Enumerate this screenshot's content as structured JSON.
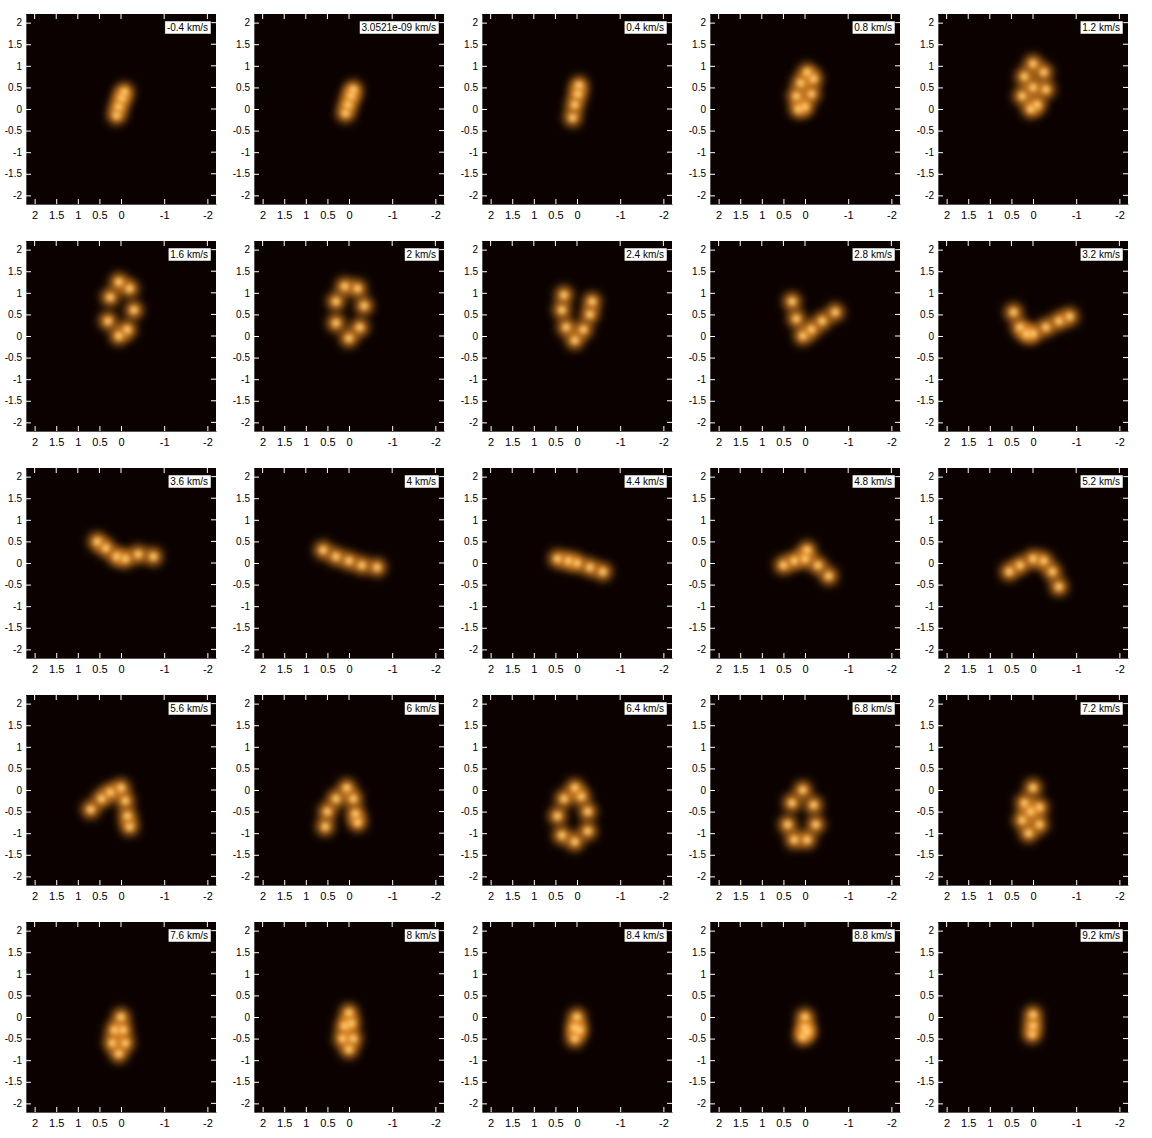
{
  "chart_data": [
    {
      "type": "scatter",
      "title": "-0.4 km/s",
      "color": "#ff9c2a",
      "x": [
        0.1,
        0.05,
        -0.02,
        -0.08
      ],
      "y": [
        -0.15,
        0.05,
        0.25,
        0.4
      ],
      "xlim": [
        2.2,
        -2.2
      ],
      "ylim": [
        -2.2,
        2.2
      ],
      "xticks": [
        2,
        1.5,
        1,
        0.5,
        0,
        -1,
        -2
      ],
      "yticks": [
        2,
        1.5,
        1,
        0.5,
        0,
        -0.5,
        -1,
        -1.5,
        -2
      ]
    },
    {
      "type": "scatter",
      "title": "3.0521e-09 km/s",
      "color": "#ff9c2a",
      "x": [
        0.08,
        0.02,
        -0.05,
        -0.1
      ],
      "y": [
        -0.1,
        0.1,
        0.3,
        0.45
      ],
      "xlim": [
        2.2,
        -2.2
      ],
      "ylim": [
        -2.2,
        2.2
      ],
      "xticks": [
        2,
        1.5,
        1,
        0.5,
        0,
        -1,
        -2
      ],
      "yticks": [
        2,
        1.5,
        1,
        0.5,
        0,
        -0.5,
        -1,
        -1.5,
        -2
      ]
    },
    {
      "type": "scatter",
      "title": "0.4 km/s",
      "color": "#ff9c2a",
      "x": [
        0.1,
        0.05,
        -0.02,
        -0.05
      ],
      "y": [
        -0.2,
        0.1,
        0.35,
        0.55
      ],
      "xlim": [
        2.2,
        -2.2
      ],
      "ylim": [
        -2.2,
        2.2
      ],
      "xticks": [
        2,
        1.5,
        1,
        0.5,
        0,
        -1,
        -2
      ],
      "yticks": [
        2,
        1.5,
        1,
        0.5,
        0,
        -0.5,
        -1,
        -1.5,
        -2
      ]
    },
    {
      "type": "scatter",
      "title": "0.8 km/s",
      "color": "#ff9c2a",
      "x": [
        0.15,
        0.2,
        0.1,
        -0.05,
        -0.2,
        -0.15,
        0
      ],
      "y": [
        0,
        0.3,
        0.6,
        0.85,
        0.7,
        0.35,
        0.05
      ],
      "xlim": [
        2.2,
        -2.2
      ],
      "ylim": [
        -2.2,
        2.2
      ],
      "xticks": [
        2,
        1.5,
        1,
        0.5,
        0,
        -1,
        -2
      ],
      "yticks": [
        2,
        1.5,
        1,
        0.5,
        0,
        -0.5,
        -1,
        -1.5,
        -2
      ]
    },
    {
      "type": "scatter",
      "title": "1.2 km/s",
      "color": "#ff9c2a",
      "x": [
        0.05,
        0.25,
        0.2,
        0,
        -0.25,
        -0.3,
        -0.1,
        0
      ],
      "y": [
        0,
        0.3,
        0.75,
        1.05,
        0.85,
        0.45,
        0.1,
        0.5
      ],
      "xlim": [
        2.2,
        -2.2
      ],
      "ylim": [
        -2.2,
        2.2
      ],
      "xticks": [
        2,
        1.5,
        1,
        0.5,
        0,
        -1,
        -2
      ],
      "yticks": [
        2,
        1.5,
        1,
        0.5,
        0,
        -0.5,
        -1,
        -1.5,
        -2
      ]
    },
    {
      "type": "scatter",
      "title": "1.6 km/s",
      "color": "#ff9c2a",
      "x": [
        0.05,
        0.3,
        0.25,
        0.05,
        -0.2,
        -0.3,
        -0.15
      ],
      "y": [
        0,
        0.35,
        0.9,
        1.25,
        1.1,
        0.6,
        0.15
      ],
      "xlim": [
        2.2,
        -2.2
      ],
      "ylim": [
        -2.2,
        2.2
      ],
      "xticks": [
        2,
        1.5,
        1,
        0.5,
        0,
        -1,
        -2
      ],
      "yticks": [
        2,
        1.5,
        1,
        0.5,
        0,
        -0.5,
        -1,
        -1.5,
        -2
      ]
    },
    {
      "type": "scatter",
      "title": "2 km/s",
      "color": "#ff9c2a",
      "x": [
        0,
        0.3,
        0.3,
        0.1,
        -0.2,
        -0.35,
        -0.25
      ],
      "y": [
        -0.05,
        0.3,
        0.8,
        1.15,
        1.1,
        0.7,
        0.2
      ],
      "xlim": [
        2.2,
        -2.2
      ],
      "ylim": [
        -2.2,
        2.2
      ],
      "xticks": [
        2,
        1.5,
        1,
        0.5,
        0,
        -1,
        -2
      ],
      "yticks": [
        2,
        1.5,
        1,
        0.5,
        0,
        -0.5,
        -1,
        -1.5,
        -2
      ]
    },
    {
      "type": "scatter",
      "title": "2.4 km/s",
      "color": "#ff9c2a",
      "x": [
        0.05,
        0.25,
        0.35,
        0.3,
        -0.15,
        -0.3,
        -0.35
      ],
      "y": [
        -0.1,
        0.2,
        0.6,
        0.95,
        0.15,
        0.5,
        0.8
      ],
      "xlim": [
        2.2,
        -2.2
      ],
      "ylim": [
        -2.2,
        2.2
      ],
      "xticks": [
        2,
        1.5,
        1,
        0.5,
        0,
        -1,
        -2
      ],
      "yticks": [
        2,
        1.5,
        1,
        0.5,
        0,
        -0.5,
        -1,
        -1.5,
        -2
      ]
    },
    {
      "type": "scatter",
      "title": "2.8 km/s",
      "color": "#ff9c2a",
      "x": [
        0.05,
        0.2,
        0.3,
        -0.15,
        -0.4,
        -0.7
      ],
      "y": [
        0,
        0.4,
        0.8,
        0.15,
        0.35,
        0.55
      ],
      "xlim": [
        2.2,
        -2.2
      ],
      "ylim": [
        -2.2,
        2.2
      ],
      "xticks": [
        2,
        1.5,
        1,
        0.5,
        0,
        -1,
        -2
      ],
      "yticks": [
        2,
        1.5,
        1,
        0.5,
        0,
        -0.5,
        -1,
        -1.5,
        -2
      ]
    },
    {
      "type": "scatter",
      "title": "3.2 km/s",
      "color": "#ff9c2a",
      "x": [
        0.3,
        0.45,
        0.15,
        0,
        -0.3,
        -0.6,
        -0.85
      ],
      "y": [
        0.2,
        0.55,
        0.05,
        0.05,
        0.2,
        0.35,
        0.45
      ],
      "xlim": [
        2.2,
        -2.2
      ],
      "ylim": [
        -2.2,
        2.2
      ],
      "xticks": [
        2,
        1.5,
        1,
        0.5,
        0,
        -1,
        -2
      ],
      "yticks": [
        2,
        1.5,
        1,
        0.5,
        0,
        -0.5,
        -1,
        -1.5,
        -2
      ]
    },
    {
      "type": "scatter",
      "title": "3.6 km/s",
      "color": "#ff9c2a",
      "x": [
        0.55,
        0.35,
        0.1,
        -0.1,
        -0.4,
        -0.75
      ],
      "y": [
        0.5,
        0.35,
        0.15,
        0.1,
        0.2,
        0.15
      ],
      "xlim": [
        2.2,
        -2.2
      ],
      "ylim": [
        -2.2,
        2.2
      ],
      "xticks": [
        2,
        1.5,
        1,
        0.5,
        0,
        -1,
        -2
      ],
      "yticks": [
        2,
        1.5,
        1,
        0.5,
        0,
        -0.5,
        -1,
        -1.5,
        -2
      ]
    },
    {
      "type": "scatter",
      "title": "4 km/s",
      "color": "#ff9c2a",
      "x": [
        0.6,
        0.3,
        0,
        -0.3,
        -0.65
      ],
      "y": [
        0.3,
        0.15,
        0.05,
        -0.05,
        -0.1
      ],
      "xlim": [
        2.2,
        -2.2
      ],
      "ylim": [
        -2.2,
        2.2
      ],
      "xticks": [
        2,
        1.5,
        1,
        0.5,
        0,
        -1,
        -2
      ],
      "yticks": [
        2,
        1.5,
        1,
        0.5,
        0,
        -0.5,
        -1,
        -1.5,
        -2
      ]
    },
    {
      "type": "scatter",
      "title": "4.4 km/s",
      "color": "#ff9c2a",
      "x": [
        0.45,
        0.2,
        0,
        -0.3,
        -0.6
      ],
      "y": [
        0.1,
        0.05,
        0,
        -0.1,
        -0.2
      ],
      "xlim": [
        2.2,
        -2.2
      ],
      "ylim": [
        -2.2,
        2.2
      ],
      "xticks": [
        2,
        1.5,
        1,
        0.5,
        0,
        -1,
        -2
      ],
      "yticks": [
        2,
        1.5,
        1,
        0.5,
        0,
        -0.5,
        -1,
        -1.5,
        -2
      ]
    },
    {
      "type": "scatter",
      "title": "4.8 km/s",
      "color": "#ff9c2a",
      "x": [
        0.5,
        0.25,
        0,
        -0.3,
        -0.55,
        -0.05
      ],
      "y": [
        -0.05,
        0.05,
        0.1,
        -0.05,
        -0.3,
        0.3
      ],
      "xlim": [
        2.2,
        -2.2
      ],
      "ylim": [
        -2.2,
        2.2
      ],
      "xticks": [
        2,
        1.5,
        1,
        0.5,
        0,
        -1,
        -2
      ],
      "yticks": [
        2,
        1.5,
        1,
        0.5,
        0,
        -0.5,
        -1,
        -1.5,
        -2
      ]
    },
    {
      "type": "scatter",
      "title": "5.2 km/s",
      "color": "#ff9c2a",
      "x": [
        0.55,
        0.3,
        0,
        -0.25,
        -0.45,
        -0.6
      ],
      "y": [
        -0.2,
        -0.05,
        0.1,
        0.05,
        -0.2,
        -0.55
      ],
      "xlim": [
        2.2,
        -2.2
      ],
      "ylim": [
        -2.2,
        2.2
      ],
      "xticks": [
        2,
        1.5,
        1,
        0.5,
        0,
        -1,
        -2
      ],
      "yticks": [
        2,
        1.5,
        1,
        0.5,
        0,
        -0.5,
        -1,
        -1.5,
        -2
      ]
    },
    {
      "type": "scatter",
      "title": "5.6 km/s",
      "color": "#ff9c2a",
      "x": [
        0.7,
        0.45,
        0.25,
        0,
        -0.1,
        -0.15,
        -0.2
      ],
      "y": [
        -0.45,
        -0.2,
        -0.05,
        0.05,
        -0.25,
        -0.6,
        -0.85
      ],
      "xlim": [
        2.2,
        -2.2
      ],
      "ylim": [
        -2.2,
        2.2
      ],
      "xticks": [
        2,
        1.5,
        1,
        0.5,
        0,
        -1,
        -2
      ],
      "yticks": [
        2,
        1.5,
        1,
        0.5,
        0,
        -0.5,
        -1,
        -1.5,
        -2
      ]
    },
    {
      "type": "scatter",
      "title": "6 km/s",
      "color": "#ff9c2a",
      "x": [
        0.55,
        0.5,
        0.3,
        0.05,
        -0.1,
        -0.15,
        -0.2
      ],
      "y": [
        -0.85,
        -0.5,
        -0.2,
        0.05,
        -0.2,
        -0.55,
        -0.75
      ],
      "xlim": [
        2.2,
        -2.2
      ],
      "ylim": [
        -2.2,
        2.2
      ],
      "xticks": [
        2,
        1.5,
        1,
        0.5,
        0,
        -1,
        -2
      ],
      "yticks": [
        2,
        1.5,
        1,
        0.5,
        0,
        -0.5,
        -1,
        -1.5,
        -2
      ]
    },
    {
      "type": "scatter",
      "title": "6.4 km/s",
      "color": "#ff9c2a",
      "x": [
        0.05,
        0.3,
        0.45,
        0.35,
        0.05,
        -0.25,
        -0.25,
        -0.1
      ],
      "y": [
        0.05,
        -0.2,
        -0.6,
        -1.05,
        -1.2,
        -0.95,
        -0.5,
        -0.15
      ],
      "xlim": [
        2.2,
        -2.2
      ],
      "ylim": [
        -2.2,
        2.2
      ],
      "xticks": [
        2,
        1.5,
        1,
        0.5,
        0,
        -1,
        -2
      ],
      "yticks": [
        2,
        1.5,
        1,
        0.5,
        0,
        -0.5,
        -1,
        -1.5,
        -2
      ]
    },
    {
      "type": "scatter",
      "title": "6.8 km/s",
      "color": "#ff9c2a",
      "x": [
        0.05,
        0.3,
        0.4,
        0.25,
        -0.05,
        -0.25,
        -0.2
      ],
      "y": [
        0,
        -0.3,
        -0.8,
        -1.15,
        -1.15,
        -0.8,
        -0.35
      ],
      "xlim": [
        2.2,
        -2.2
      ],
      "ylim": [
        -2.2,
        2.2
      ],
      "xticks": [
        2,
        1.5,
        1,
        0.5,
        0,
        -1,
        -2
      ],
      "yticks": [
        2,
        1.5,
        1,
        0.5,
        0,
        -0.5,
        -1,
        -1.5,
        -2
      ]
    },
    {
      "type": "scatter",
      "title": "7.2 km/s",
      "color": "#ff9c2a",
      "x": [
        0,
        0.2,
        0.25,
        0.1,
        -0.15,
        -0.15,
        0.05
      ],
      "y": [
        0.05,
        -0.3,
        -0.7,
        -1.0,
        -0.8,
        -0.4,
        -0.5
      ],
      "xlim": [
        2.2,
        -2.2
      ],
      "ylim": [
        -2.2,
        2.2
      ],
      "xticks": [
        2,
        1.5,
        1,
        0.5,
        0,
        -1,
        -2
      ],
      "yticks": [
        2,
        1.5,
        1,
        0.5,
        0,
        -0.5,
        -1,
        -1.5,
        -2
      ]
    },
    {
      "type": "scatter",
      "title": "7.6 km/s",
      "color": "#ff9c2a",
      "x": [
        0,
        0.15,
        0.2,
        0.05,
        -0.1,
        -0.05
      ],
      "y": [
        0,
        -0.3,
        -0.6,
        -0.85,
        -0.6,
        -0.3
      ],
      "xlim": [
        2.2,
        -2.2
      ],
      "ylim": [
        -2.2,
        2.2
      ],
      "xticks": [
        2,
        1.5,
        1,
        0.5,
        0,
        -1,
        -2
      ],
      "yticks": [
        2,
        1.5,
        1,
        0.5,
        0,
        -0.5,
        -1,
        -1.5,
        -2
      ]
    },
    {
      "type": "scatter",
      "title": "8 km/s",
      "color": "#ff9c2a",
      "x": [
        0,
        0.1,
        0.15,
        0,
        -0.1,
        -0.05
      ],
      "y": [
        0.1,
        -0.2,
        -0.5,
        -0.75,
        -0.5,
        -0.15
      ],
      "xlim": [
        2.2,
        -2.2
      ],
      "ylim": [
        -2.2,
        2.2
      ],
      "xticks": [
        2,
        1.5,
        1,
        0.5,
        0,
        -1,
        -2
      ],
      "yticks": [
        2,
        1.5,
        1,
        0.5,
        0,
        -0.5,
        -1,
        -1.5,
        -2
      ]
    },
    {
      "type": "scatter",
      "title": "8.4 km/s",
      "color": "#ff9c2a",
      "x": [
        0,
        0.05,
        0.05,
        -0.05
      ],
      "y": [
        0,
        -0.25,
        -0.5,
        -0.3
      ],
      "xlim": [
        2.2,
        -2.2
      ],
      "ylim": [
        -2.2,
        2.2
      ],
      "xticks": [
        2,
        1.5,
        1,
        0.5,
        0,
        -1,
        -2
      ],
      "yticks": [
        2,
        1.5,
        1,
        0.5,
        0,
        -0.5,
        -1,
        -1.5,
        -2
      ]
    },
    {
      "type": "scatter",
      "title": "8.8 km/s",
      "color": "#ff9c2a",
      "x": [
        0,
        0,
        0.05,
        -0.05
      ],
      "y": [
        0,
        -0.25,
        -0.45,
        -0.35
      ],
      "xlim": [
        2.2,
        -2.2
      ],
      "ylim": [
        -2.2,
        2.2
      ],
      "xticks": [
        2,
        1.5,
        1,
        0.5,
        0,
        -1,
        -2
      ],
      "yticks": [
        2,
        1.5,
        1,
        0.5,
        0,
        -0.5,
        -1,
        -1.5,
        -2
      ]
    },
    {
      "type": "scatter",
      "title": "9.2 km/s",
      "color": "#ff9c2a",
      "x": [
        0,
        0,
        0.02
      ],
      "y": [
        0.05,
        -0.2,
        -0.4
      ],
      "xlim": [
        2.2,
        -2.2
      ],
      "ylim": [
        -2.2,
        2.2
      ],
      "xticks": [
        2,
        1.5,
        1,
        0.5,
        0,
        -1,
        -2
      ],
      "yticks": [
        2,
        1.5,
        1,
        0.5,
        0,
        -0.5,
        -1,
        -1.5,
        -2
      ]
    }
  ]
}
